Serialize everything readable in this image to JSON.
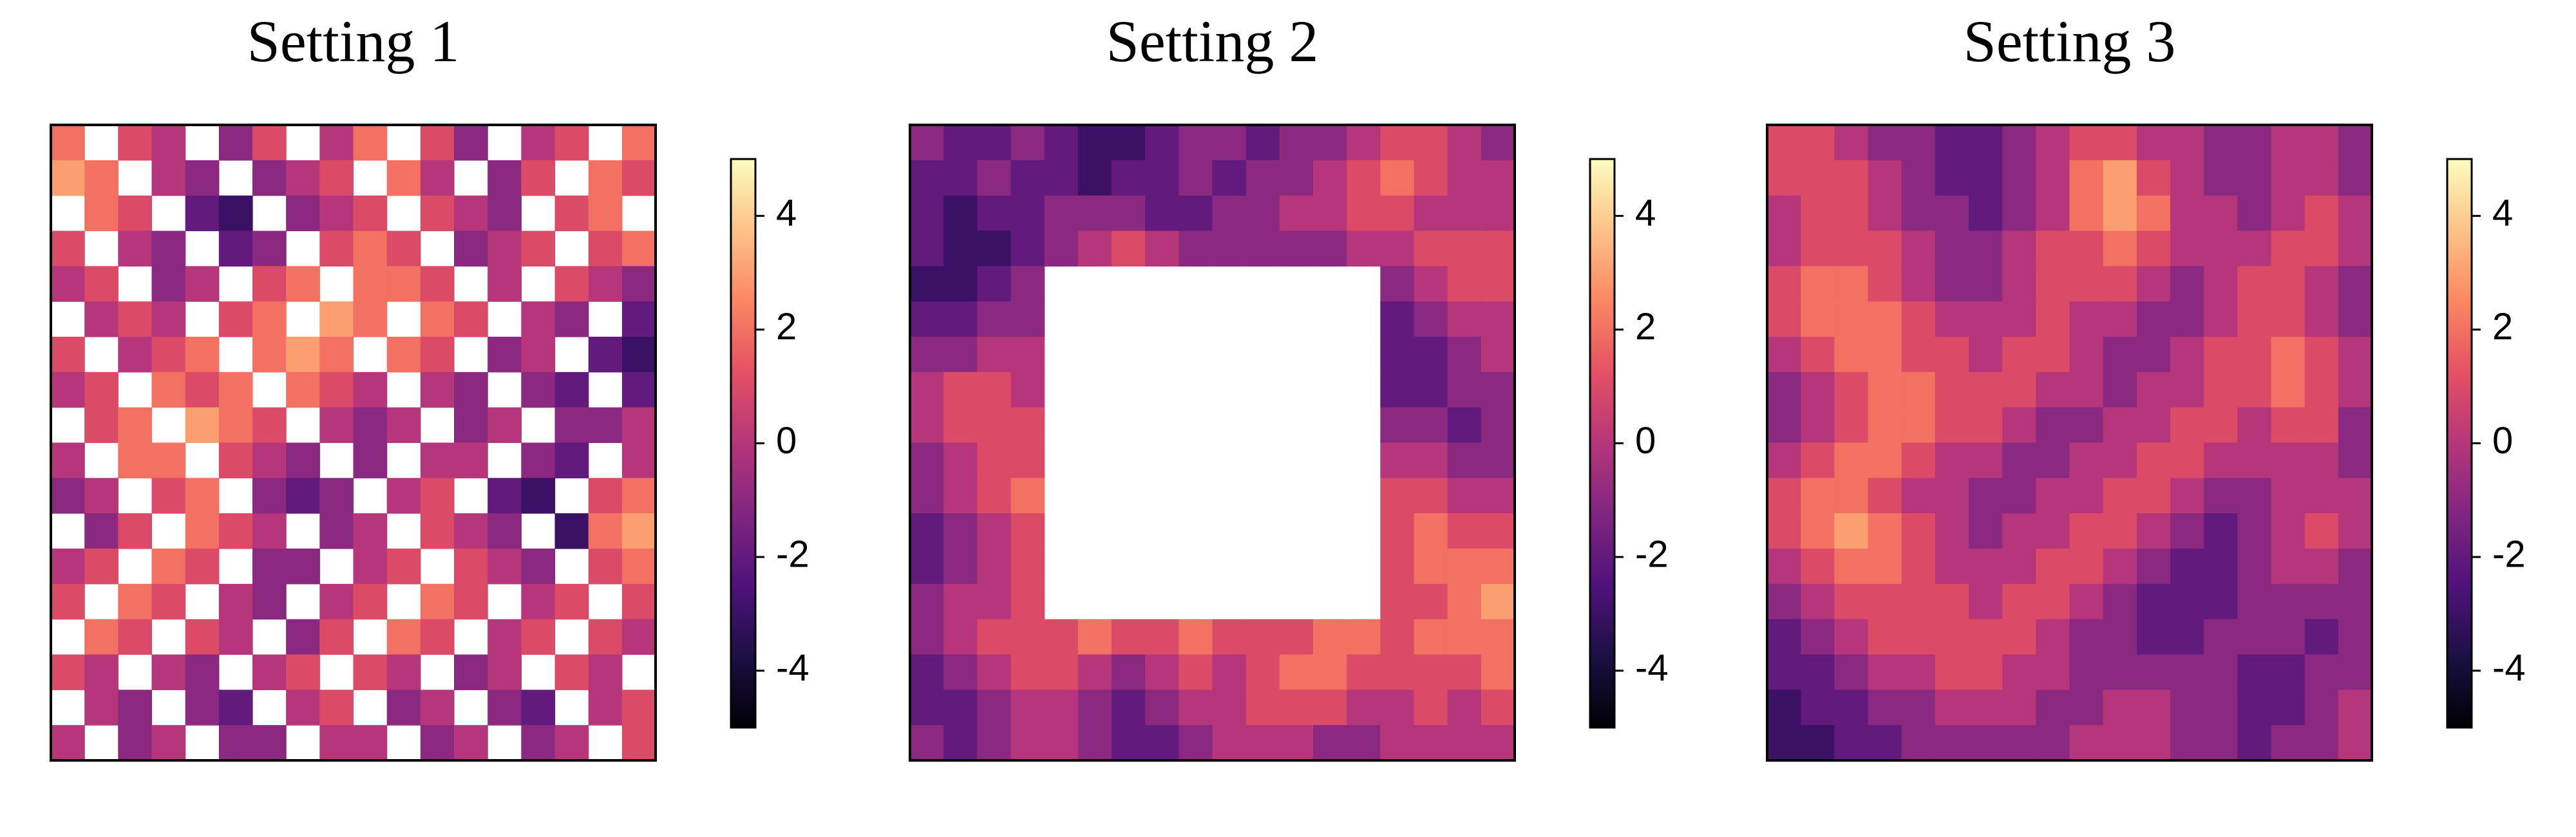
{
  "chart_data": [
    {
      "type": "heatmap",
      "title": "Setting 1",
      "zlim": [
        -5,
        5
      ],
      "zticks": [
        -4,
        -2,
        0,
        2,
        4
      ],
      "colors": [
        "#000004",
        "#1c1044",
        "#4f127b",
        "#812581",
        "#b5367a",
        "#e55064",
        "#fb8761",
        "#fec287",
        "#fcfdbf"
      ],
      "z": [
        [
          2,
          null,
          1,
          0,
          null,
          -1,
          1,
          null,
          0,
          2,
          null,
          1,
          -1,
          null,
          0,
          1,
          null,
          2
        ],
        [
          3,
          2,
          null,
          0,
          -1,
          null,
          -1,
          0,
          1,
          null,
          2,
          0,
          null,
          -1,
          1,
          null,
          2,
          1
        ],
        [
          null,
          2,
          1,
          null,
          -2,
          -3,
          null,
          -1,
          0,
          1,
          null,
          1,
          0,
          -1,
          null,
          1,
          2,
          null
        ],
        [
          1,
          null,
          0,
          -1,
          null,
          -2,
          -1,
          null,
          1,
          2,
          1,
          null,
          -1,
          0,
          1,
          null,
          1,
          2
        ],
        [
          0,
          1,
          null,
          -1,
          0,
          null,
          1,
          2,
          null,
          2,
          2,
          1,
          null,
          0,
          null,
          1,
          0,
          -1
        ],
        [
          null,
          0,
          1,
          0,
          null,
          1,
          2,
          null,
          3,
          2,
          null,
          2,
          1,
          null,
          0,
          -1,
          null,
          -2
        ],
        [
          1,
          null,
          0,
          1,
          2,
          null,
          2,
          3,
          2,
          null,
          2,
          1,
          null,
          -1,
          0,
          null,
          -2,
          -3
        ],
        [
          0,
          1,
          null,
          2,
          1,
          2,
          null,
          2,
          1,
          0,
          null,
          0,
          -1,
          null,
          -1,
          -2,
          null,
          -2
        ],
        [
          null,
          1,
          2,
          null,
          3,
          2,
          1,
          null,
          0,
          -1,
          0,
          null,
          -1,
          0,
          null,
          -1,
          -1,
          0
        ],
        [
          0,
          null,
          2,
          2,
          null,
          1,
          0,
          -1,
          null,
          -1,
          null,
          0,
          0,
          null,
          -1,
          -2,
          null,
          0
        ],
        [
          -1,
          0,
          null,
          1,
          2,
          null,
          -1,
          -2,
          -1,
          null,
          0,
          1,
          null,
          -2,
          -3,
          null,
          1,
          2
        ],
        [
          null,
          -1,
          1,
          null,
          2,
          1,
          0,
          null,
          -1,
          0,
          null,
          1,
          0,
          -1,
          null,
          -3,
          2,
          3
        ],
        [
          0,
          1,
          null,
          2,
          1,
          null,
          -1,
          -1,
          null,
          0,
          1,
          null,
          1,
          0,
          -1,
          null,
          1,
          2
        ],
        [
          1,
          null,
          2,
          1,
          null,
          0,
          -1,
          null,
          0,
          1,
          null,
          2,
          1,
          null,
          0,
          1,
          null,
          1
        ],
        [
          null,
          2,
          1,
          null,
          1,
          0,
          null,
          -1,
          1,
          null,
          2,
          1,
          null,
          0,
          1,
          null,
          1,
          0
        ],
        [
          1,
          0,
          null,
          0,
          -1,
          null,
          0,
          1,
          null,
          1,
          0,
          null,
          -1,
          0,
          null,
          1,
          0,
          null
        ],
        [
          null,
          0,
          -1,
          null,
          -1,
          -2,
          null,
          0,
          1,
          null,
          -1,
          0,
          null,
          -1,
          -2,
          null,
          0,
          1
        ],
        [
          0,
          null,
          -1,
          0,
          null,
          -1,
          -1,
          null,
          0,
          0,
          null,
          -1,
          0,
          null,
          -1,
          0,
          null,
          1
        ]
      ]
    },
    {
      "type": "heatmap",
      "title": "Setting 2",
      "zlim": [
        -5,
        5
      ],
      "zticks": [
        -4,
        -2,
        0,
        2,
        4
      ],
      "colors": [
        "#000004",
        "#1c1044",
        "#4f127b",
        "#812581",
        "#b5367a",
        "#e55064",
        "#fb8761",
        "#fec287",
        "#fcfdbf"
      ],
      "z": [
        [
          -1,
          -2,
          -2,
          -1,
          -2,
          -3,
          -3,
          -2,
          -1,
          -1,
          -2,
          -1,
          -1,
          0,
          1,
          1,
          0,
          -1
        ],
        [
          -2,
          -2,
          -1,
          -2,
          -2,
          -3,
          -2,
          -2,
          -1,
          -2,
          -1,
          -1,
          0,
          1,
          2,
          1,
          0,
          0
        ],
        [
          -2,
          -3,
          -2,
          -2,
          -1,
          -1,
          -1,
          -2,
          -2,
          -1,
          -1,
          0,
          0,
          1,
          1,
          0,
          0,
          0
        ],
        [
          -2,
          -3,
          -3,
          -2,
          -1,
          0,
          1,
          0,
          -1,
          -1,
          -1,
          -1,
          -1,
          0,
          0,
          1,
          1,
          1
        ],
        [
          -3,
          -3,
          -2,
          -1,
          null,
          null,
          null,
          null,
          null,
          null,
          null,
          null,
          null,
          null,
          -1,
          0,
          1,
          1
        ],
        [
          -2,
          -2,
          -1,
          -1,
          null,
          null,
          null,
          null,
          null,
          null,
          null,
          null,
          null,
          null,
          -2,
          -1,
          0,
          0
        ],
        [
          -1,
          -1,
          0,
          0,
          null,
          null,
          null,
          null,
          null,
          null,
          null,
          null,
          null,
          null,
          -2,
          -2,
          -1,
          0
        ],
        [
          0,
          1,
          1,
          0,
          null,
          null,
          null,
          null,
          null,
          null,
          null,
          null,
          null,
          null,
          -2,
          -2,
          -1,
          -1
        ],
        [
          0,
          1,
          1,
          1,
          null,
          null,
          null,
          null,
          null,
          null,
          null,
          null,
          null,
          null,
          -1,
          -1,
          -2,
          -1
        ],
        [
          -1,
          0,
          1,
          1,
          null,
          null,
          null,
          null,
          null,
          null,
          null,
          null,
          null,
          null,
          0,
          0,
          -1,
          -1
        ],
        [
          -1,
          0,
          1,
          2,
          null,
          null,
          null,
          null,
          null,
          null,
          null,
          null,
          null,
          null,
          1,
          1,
          0,
          0
        ],
        [
          -2,
          -1,
          0,
          1,
          null,
          null,
          null,
          null,
          null,
          null,
          null,
          null,
          null,
          null,
          1,
          2,
          1,
          1
        ],
        [
          -2,
          -1,
          0,
          1,
          null,
          null,
          null,
          null,
          null,
          null,
          null,
          null,
          null,
          null,
          1,
          2,
          2,
          2
        ],
        [
          -1,
          0,
          0,
          1,
          null,
          null,
          null,
          null,
          null,
          null,
          null,
          null,
          null,
          null,
          1,
          1,
          2,
          3
        ],
        [
          -1,
          0,
          1,
          1,
          1,
          2,
          1,
          1,
          2,
          1,
          1,
          1,
          2,
          2,
          1,
          2,
          2,
          2
        ],
        [
          -2,
          -1,
          0,
          1,
          1,
          0,
          -1,
          0,
          1,
          0,
          1,
          2,
          2,
          1,
          1,
          1,
          1,
          2
        ],
        [
          -2,
          -2,
          -1,
          0,
          0,
          -1,
          -2,
          -1,
          0,
          0,
          1,
          1,
          1,
          0,
          0,
          1,
          0,
          1
        ],
        [
          -1,
          -2,
          -1,
          0,
          0,
          -1,
          -2,
          -2,
          -1,
          0,
          0,
          0,
          -1,
          -1,
          0,
          0,
          0,
          0
        ]
      ]
    },
    {
      "type": "heatmap",
      "title": "Setting 3",
      "zlim": [
        -5,
        5
      ],
      "zticks": [
        -4,
        -2,
        0,
        2,
        4
      ],
      "colors": [
        "#000004",
        "#1c1044",
        "#4f127b",
        "#812581",
        "#b5367a",
        "#e55064",
        "#fb8761",
        "#fec287",
        "#fcfdbf"
      ],
      "z": [
        [
          1,
          1,
          0,
          -1,
          -1,
          -2,
          -2,
          -1,
          0,
          1,
          1,
          0,
          0,
          -1,
          -1,
          0,
          0,
          -1
        ],
        [
          1,
          1,
          1,
          0,
          -1,
          -2,
          -2,
          -1,
          0,
          2,
          3,
          1,
          0,
          -1,
          -1,
          0,
          0,
          -1
        ],
        [
          0,
          1,
          1,
          0,
          -1,
          -1,
          -2,
          -1,
          0,
          2,
          3,
          2,
          0,
          0,
          -1,
          0,
          1,
          0
        ],
        [
          0,
          1,
          1,
          1,
          0,
          -1,
          -1,
          0,
          1,
          1,
          2,
          1,
          0,
          0,
          0,
          1,
          1,
          0
        ],
        [
          1,
          2,
          2,
          1,
          0,
          -1,
          -1,
          0,
          1,
          1,
          1,
          0,
          -1,
          0,
          1,
          1,
          0,
          -1
        ],
        [
          1,
          2,
          2,
          2,
          1,
          0,
          0,
          0,
          1,
          0,
          0,
          -1,
          -1,
          0,
          1,
          1,
          0,
          -1
        ],
        [
          0,
          1,
          2,
          2,
          1,
          1,
          0,
          1,
          1,
          0,
          -1,
          -1,
          0,
          1,
          1,
          2,
          1,
          0
        ],
        [
          -1,
          0,
          1,
          2,
          2,
          1,
          1,
          1,
          0,
          0,
          -1,
          0,
          0,
          1,
          1,
          2,
          1,
          0
        ],
        [
          -1,
          0,
          1,
          2,
          2,
          1,
          1,
          0,
          -1,
          -1,
          0,
          0,
          1,
          1,
          0,
          1,
          1,
          -1
        ],
        [
          0,
          1,
          2,
          2,
          1,
          0,
          0,
          -1,
          -1,
          0,
          0,
          1,
          1,
          0,
          0,
          0,
          0,
          -1
        ],
        [
          1,
          2,
          2,
          1,
          0,
          0,
          -1,
          -1,
          0,
          0,
          1,
          1,
          0,
          -1,
          -1,
          0,
          0,
          0
        ],
        [
          1,
          2,
          3,
          2,
          1,
          0,
          -1,
          0,
          0,
          1,
          1,
          0,
          -1,
          -2,
          -1,
          0,
          1,
          0
        ],
        [
          0,
          1,
          2,
          2,
          1,
          0,
          0,
          0,
          1,
          1,
          0,
          -1,
          -2,
          -2,
          -1,
          0,
          0,
          -1
        ],
        [
          -1,
          0,
          1,
          1,
          1,
          1,
          0,
          1,
          1,
          0,
          -1,
          -2,
          -2,
          -2,
          -1,
          -1,
          -1,
          -1
        ],
        [
          -2,
          -1,
          0,
          1,
          1,
          1,
          1,
          1,
          0,
          -1,
          -1,
          -2,
          -2,
          -1,
          -1,
          -1,
          -2,
          -1
        ],
        [
          -2,
          -2,
          -1,
          0,
          0,
          1,
          1,
          0,
          0,
          -1,
          -1,
          -1,
          -1,
          -1,
          -2,
          -2,
          -1,
          -1
        ],
        [
          -3,
          -2,
          -2,
          -1,
          -1,
          0,
          0,
          0,
          -1,
          -1,
          0,
          0,
          -1,
          -1,
          -2,
          -2,
          -1,
          0
        ],
        [
          -3,
          -3,
          -2,
          -2,
          -1,
          -1,
          -1,
          -1,
          -1,
          0,
          0,
          0,
          -1,
          -1,
          -2,
          -1,
          -1,
          0
        ]
      ]
    }
  ]
}
